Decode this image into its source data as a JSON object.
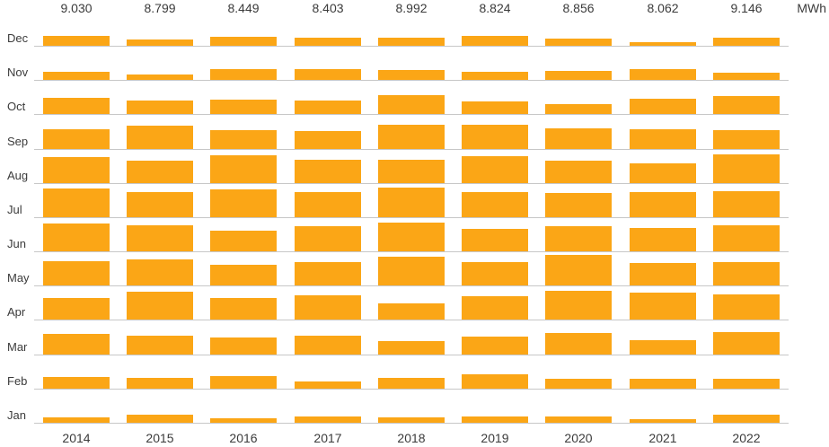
{
  "colors": {
    "bar": "#fba616",
    "baseline": "#c7c7c7",
    "text": "#3b3b3b",
    "background": "#ffffff"
  },
  "chart_data": {
    "type": "bar",
    "title": "",
    "unit": "MWh",
    "description": "Small-multiples column chart: monthly energy (MWh) per month row (Dec at top to Jan at bottom) across years 2014-2022; yearly totals shown above each column group.",
    "legend": "none",
    "grid": "one light horizontal baseline per month row",
    "years": [
      "2014",
      "2015",
      "2016",
      "2017",
      "2018",
      "2019",
      "2020",
      "2021",
      "2022"
    ],
    "year_totals_display": [
      "9.030",
      "8.799",
      "8.449",
      "8.403",
      "8.992",
      "8.824",
      "8.856",
      "8.062",
      "9.146"
    ],
    "months": [
      "Jan",
      "Feb",
      "Mar",
      "Apr",
      "May",
      "Jun",
      "Jul",
      "Aug",
      "Sep",
      "Oct",
      "Nov",
      "Dec"
    ],
    "month_rows_top_to_bottom": [
      "Dec",
      "Nov",
      "Oct",
      "Sep",
      "Aug",
      "Jul",
      "Jun",
      "May",
      "Apr",
      "Mar",
      "Feb",
      "Jan"
    ],
    "series": [
      {
        "year": "2014",
        "monthly_mwh": [
          0.23,
          0.48,
          0.85,
          0.89,
          0.99,
          1.14,
          1.18,
          1.07,
          0.8,
          0.65,
          0.33,
          0.41
        ]
      },
      {
        "year": "2015",
        "monthly_mwh": [
          0.32,
          0.44,
          0.79,
          1.14,
          1.09,
          1.07,
          1.03,
          0.92,
          0.96,
          0.56,
          0.22,
          0.26
        ]
      },
      {
        "year": "2016",
        "monthly_mwh": [
          0.17,
          0.5,
          0.71,
          0.9,
          0.84,
          0.87,
          1.15,
          1.16,
          0.77,
          0.59,
          0.43,
          0.36
        ]
      },
      {
        "year": "2017",
        "monthly_mwh": [
          0.26,
          0.3,
          0.76,
          1.01,
          0.97,
          1.04,
          1.03,
          0.97,
          0.75,
          0.56,
          0.45,
          0.32
        ]
      },
      {
        "year": "2018",
        "monthly_mwh": [
          0.23,
          0.43,
          0.55,
          0.68,
          1.19,
          1.2,
          1.22,
          0.97,
          0.99,
          0.78,
          0.41,
          0.34
        ]
      },
      {
        "year": "2019",
        "monthly_mwh": [
          0.27,
          0.6,
          0.74,
          0.98,
          0.95,
          0.91,
          1.05,
          1.1,
          0.99,
          0.5,
          0.33,
          0.4
        ]
      },
      {
        "year": "2020",
        "monthly_mwh": [
          0.27,
          0.39,
          0.89,
          1.19,
          1.27,
          1.02,
          1.0,
          0.93,
          0.87,
          0.39,
          0.36,
          0.28
        ]
      },
      {
        "year": "2021",
        "monthly_mwh": [
          0.15,
          0.39,
          0.61,
          1.1,
          0.91,
          0.98,
          1.05,
          0.81,
          0.82,
          0.64,
          0.45,
          0.15
        ]
      },
      {
        "year": "2022",
        "monthly_mwh": [
          0.34,
          0.41,
          0.92,
          1.05,
          0.97,
          1.07,
          1.09,
          1.17,
          0.78,
          0.73,
          0.3,
          0.32
        ]
      }
    ]
  }
}
